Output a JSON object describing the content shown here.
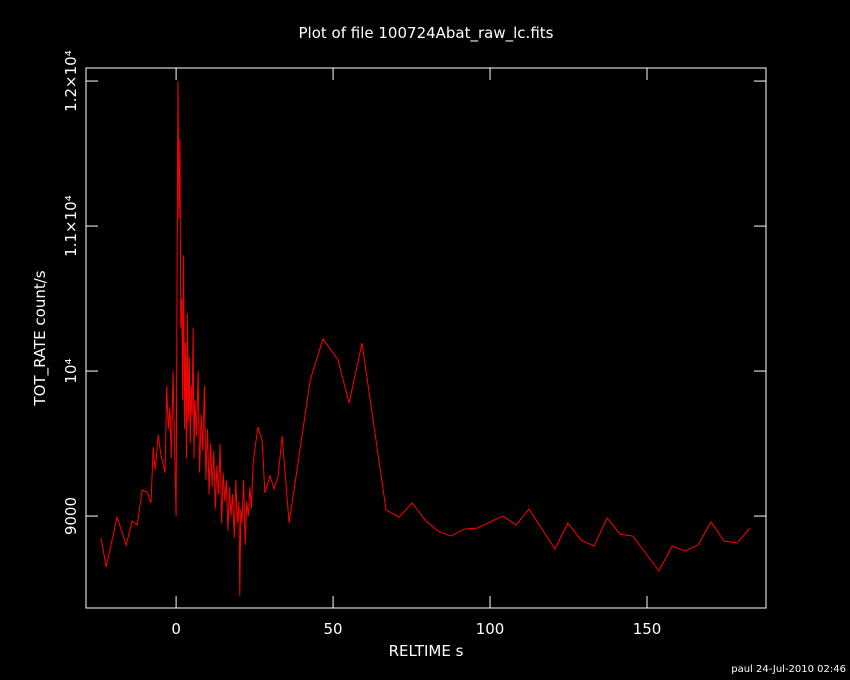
{
  "chart_data": {
    "type": "line",
    "title": "Plot of file 100724Abat_raw_lc.fits",
    "x_label": "RELTIME  s",
    "y_label": "TOT_RATE  count/s",
    "footer": "paul 24-Jul-2010 02:46",
    "xlim": [
      -28.7,
      187.9
    ],
    "ylim": [
      8366,
      12090
    ],
    "xticks": [
      0,
      50,
      100,
      150
    ],
    "yticks": [
      9000,
      {
        "value": 10000,
        "label": "10⁴"
      },
      {
        "value": 11000,
        "label": "1.1×10⁴"
      },
      {
        "value": 12000,
        "label": "1.2×10⁴"
      }
    ],
    "series": [
      {
        "color": "#ff0000",
        "x": [
          -23.9,
          -22.3,
          -18.8,
          -15.9,
          -14.0,
          -12.4,
          -10.8,
          -9.2,
          -8.0,
          -7.3,
          -6.7,
          -5.7,
          -4.8,
          -3.5,
          -3,
          -2.5,
          -2,
          -1.5,
          -1,
          -0.5,
          0,
          0.3,
          0.6,
          0.9,
          1.2,
          1.5,
          1.8,
          2.1,
          2.4,
          2.7,
          3,
          3.3,
          3.6,
          3.9,
          4.2,
          4.5,
          4.8,
          5.1,
          5.4,
          5.7,
          6,
          6.5,
          7,
          7.5,
          8,
          8.5,
          9,
          9.5,
          10,
          10.5,
          11,
          11.5,
          12,
          12.5,
          13,
          13.5,
          14,
          14.5,
          15,
          15.5,
          16,
          16.5,
          17,
          17.5,
          18,
          18.5,
          19,
          19.5,
          20,
          20.3,
          20.6,
          21,
          21.5,
          22,
          22.5,
          23,
          23.5,
          24,
          24.5,
          25,
          26.1,
          27.4,
          28.3,
          29.9,
          31.2,
          32.5,
          33.8,
          36.0,
          38.5,
          42.7,
          46.8,
          51.6,
          55.1,
          59.2,
          66.9,
          71.0,
          75.2,
          79.3,
          83.4,
          87.6,
          91.7,
          95.9,
          104.1,
          108.3,
          112.4,
          120.7,
          124.8,
          129.0,
          133.1,
          137.3,
          141.4,
          145.5,
          153.8,
          158.0,
          162.1,
          166.2,
          170.4,
          174.5,
          178.7,
          182.8
        ],
        "values": [
          8848,
          8648,
          8993,
          8800,
          8966,
          8938,
          9179,
          9166,
          9090,
          9476,
          9317,
          9559,
          9421,
          9300,
          9900,
          9600,
          9750,
          9400,
          10000,
          9500,
          9000,
          10550,
          12000,
          11050,
          11600,
          10300,
          10500,
          9800,
          10800,
          9600,
          10200,
          9400,
          10400,
          9650,
          10100,
          9500,
          9900,
          9700,
          10300,
          9400,
          9800,
          9550,
          10000,
          9300,
          9700,
          9450,
          9900,
          9250,
          9600,
          9150,
          9500,
          9200,
          9450,
          9050,
          9350,
          9150,
          9500,
          8950,
          9300,
          9100,
          9250,
          8900,
          9200,
          9000,
          9150,
          8850,
          9250,
          8950,
          9100,
          8450,
          9050,
          8950,
          9250,
          8800,
          9100,
          9000,
          9200,
          9050,
          9350,
          9450,
          9614,
          9524,
          9159,
          9276,
          9186,
          9276,
          9552,
          8952,
          9317,
          9938,
          10221,
          10076,
          9779,
          10193,
          9041,
          8993,
          9090,
          8972,
          8897,
          8862,
          8910,
          8917,
          9000,
          8938,
          9048,
          8772,
          8952,
          8834,
          8793,
          8986,
          8876,
          8862,
          8621,
          8793,
          8759,
          8800,
          8959,
          8828,
          8814,
          8917
        ]
      }
    ]
  }
}
